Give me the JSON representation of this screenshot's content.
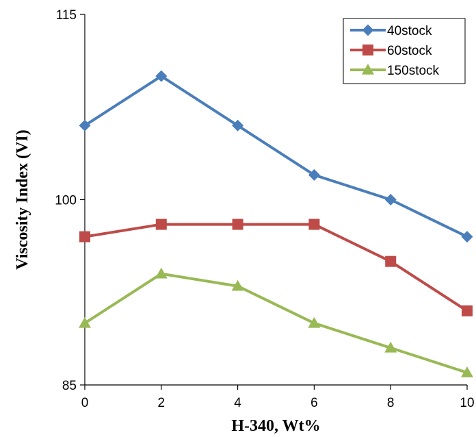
{
  "chart_data": {
    "type": "line",
    "title": "",
    "xlabel": "H-340, Wt%",
    "ylabel": "Viscosity Index (VI)",
    "x": [
      0,
      2,
      4,
      6,
      8,
      10
    ],
    "xticks": [
      "0",
      "2",
      "4",
      "6",
      "8",
      "10"
    ],
    "xlim": [
      0,
      10
    ],
    "ylim": [
      85,
      115
    ],
    "yticks": [
      "85",
      "100",
      "115"
    ],
    "ytick_values": [
      85,
      100,
      115
    ],
    "grid": false,
    "legend_position": "top-right",
    "series": [
      {
        "name": "40stock",
        "values": [
          106,
          110,
          106,
          102,
          100,
          97
        ],
        "color": "#4a7ebb",
        "marker": "diamond"
      },
      {
        "name": "60stock",
        "values": [
          97,
          98,
          98,
          98,
          95,
          91
        ],
        "color": "#be4b48",
        "marker": "square"
      },
      {
        "name": "150stock",
        "values": [
          90,
          94,
          93,
          90,
          88,
          86
        ],
        "color": "#98b954",
        "marker": "triangle"
      }
    ]
  }
}
